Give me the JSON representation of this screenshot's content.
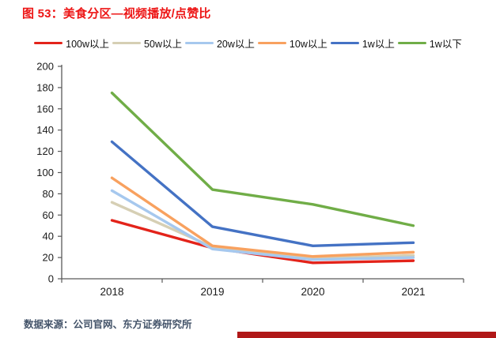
{
  "title": "图 53：美食分区—视频播放/点赞比",
  "footer": {
    "source": "数据来源：公司官网、东方证券研究所"
  },
  "style": {
    "title_color": "#ed1515",
    "footer_color": "#44546a",
    "axis_color": "#595959",
    "tick_label_color": "#1a1a1a",
    "bottom_bar_color": "#b01818"
  },
  "chart_data": {
    "type": "line",
    "title": "美食分区—视频播放/点赞比",
    "categories": [
      "2018",
      "2019",
      "2020",
      "2021"
    ],
    "series": [
      {
        "name": "100w以上",
        "color": "#e3231a",
        "values": [
          55,
          29,
          15,
          17
        ]
      },
      {
        "name": "50w以上",
        "color": "#d6cfb4",
        "values": [
          72,
          30,
          19,
          22
        ]
      },
      {
        "name": "20w以上",
        "color": "#a6c8ee",
        "values": [
          83,
          28,
          18,
          20
        ]
      },
      {
        "name": "10w以上",
        "color": "#f8a15f",
        "values": [
          95,
          31,
          21,
          25
        ]
      },
      {
        "name": "1w以上",
        "color": "#4472c4",
        "values": [
          129,
          49,
          31,
          34
        ]
      },
      {
        "name": "1w以下",
        "color": "#70ad47",
        "values": [
          175,
          84,
          70,
          50
        ]
      }
    ],
    "xlabel": "",
    "ylabel": "",
    "ylim": [
      0,
      200
    ],
    "ytick_step": 20,
    "grid": false,
    "legend_position": "top"
  }
}
